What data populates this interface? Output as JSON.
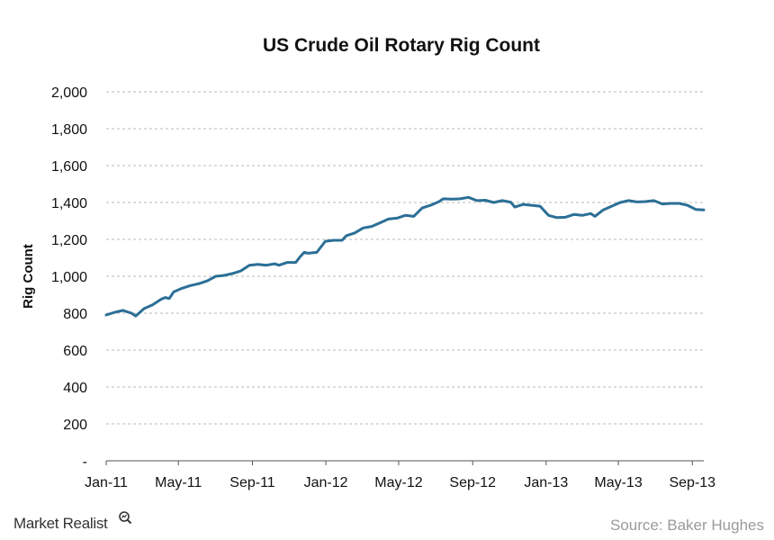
{
  "chart_data": {
    "type": "line",
    "title": "US Crude Oil Rotary Rig Count",
    "xlabel": "",
    "ylabel": "Rig Count",
    "ylim": [
      0,
      2000
    ],
    "grid": true,
    "y_ticks": [
      0,
      200,
      400,
      600,
      800,
      1000,
      1200,
      1400,
      1600,
      1800,
      2000
    ],
    "y_tick_labels": [
      "-",
      "200",
      "400",
      "600",
      "800",
      "1,000",
      "1,200",
      "1,400",
      "1,600",
      "1,800",
      "2,000"
    ],
    "x_tick_labels": [
      "Jan-11",
      "May-11",
      "Sep-11",
      "Jan-12",
      "May-12",
      "Sep-12",
      "Jan-13",
      "May-13",
      "Sep-13"
    ],
    "x_range": [
      "2011-01-01",
      "2013-09-20"
    ],
    "series": [
      {
        "name": "",
        "color": "#2b6f96",
        "points": [
          [
            "2011-01-01",
            790
          ],
          [
            "2011-01-15",
            805
          ],
          [
            "2011-01-29",
            815
          ],
          [
            "2011-02-12",
            800
          ],
          [
            "2011-02-19",
            785
          ],
          [
            "2011-03-05",
            825
          ],
          [
            "2011-03-19",
            845
          ],
          [
            "2011-04-02",
            875
          ],
          [
            "2011-04-09",
            885
          ],
          [
            "2011-04-16",
            880
          ],
          [
            "2011-04-23",
            915
          ],
          [
            "2011-05-07",
            935
          ],
          [
            "2011-05-21",
            950
          ],
          [
            "2011-06-04",
            960
          ],
          [
            "2011-06-18",
            975
          ],
          [
            "2011-07-02",
            1000
          ],
          [
            "2011-07-16",
            1005
          ],
          [
            "2011-07-30",
            1015
          ],
          [
            "2011-08-13",
            1030
          ],
          [
            "2011-08-27",
            1060
          ],
          [
            "2011-09-10",
            1065
          ],
          [
            "2011-09-24",
            1060
          ],
          [
            "2011-10-08",
            1068
          ],
          [
            "2011-10-15",
            1060
          ],
          [
            "2011-10-29",
            1075
          ],
          [
            "2011-11-12",
            1075
          ],
          [
            "2011-11-19",
            1105
          ],
          [
            "2011-11-26",
            1130
          ],
          [
            "2011-12-03",
            1125
          ],
          [
            "2011-12-17",
            1130
          ],
          [
            "2011-12-31",
            1190
          ],
          [
            "2012-01-14",
            1195
          ],
          [
            "2012-01-28",
            1195
          ],
          [
            "2012-02-04",
            1220
          ],
          [
            "2012-02-18",
            1235
          ],
          [
            "2012-03-03",
            1262
          ],
          [
            "2012-03-17",
            1270
          ],
          [
            "2012-03-31",
            1290
          ],
          [
            "2012-04-14",
            1310
          ],
          [
            "2012-04-28",
            1315
          ],
          [
            "2012-05-12",
            1330
          ],
          [
            "2012-05-26",
            1325
          ],
          [
            "2012-06-09",
            1370
          ],
          [
            "2012-06-23",
            1385
          ],
          [
            "2012-07-07",
            1405
          ],
          [
            "2012-07-14",
            1420
          ],
          [
            "2012-07-28",
            1418
          ],
          [
            "2012-08-11",
            1420
          ],
          [
            "2012-08-25",
            1428
          ],
          [
            "2012-09-08",
            1410
          ],
          [
            "2012-09-22",
            1412
          ],
          [
            "2012-10-06",
            1400
          ],
          [
            "2012-10-20",
            1410
          ],
          [
            "2012-11-03",
            1402
          ],
          [
            "2012-11-10",
            1375
          ],
          [
            "2012-11-24",
            1390
          ],
          [
            "2012-12-08",
            1385
          ],
          [
            "2012-12-22",
            1380
          ],
          [
            "2013-01-05",
            1330
          ],
          [
            "2013-01-19",
            1318
          ],
          [
            "2013-02-02",
            1320
          ],
          [
            "2013-02-16",
            1335
          ],
          [
            "2013-03-02",
            1330
          ],
          [
            "2013-03-16",
            1340
          ],
          [
            "2013-03-23",
            1325
          ],
          [
            "2013-04-06",
            1360
          ],
          [
            "2013-04-20",
            1380
          ],
          [
            "2013-05-04",
            1400
          ],
          [
            "2013-05-18",
            1410
          ],
          [
            "2013-06-01",
            1403
          ],
          [
            "2013-06-15",
            1405
          ],
          [
            "2013-06-29",
            1410
          ],
          [
            "2013-07-13",
            1392
          ],
          [
            "2013-07-27",
            1395
          ],
          [
            "2013-08-10",
            1395
          ],
          [
            "2013-08-24",
            1385
          ],
          [
            "2013-09-07",
            1362
          ],
          [
            "2013-09-20",
            1360
          ]
        ]
      }
    ]
  },
  "source": "Source: Baker Hughes",
  "brand": {
    "name": "Market Realist",
    "icon": "magnifier-icon"
  }
}
